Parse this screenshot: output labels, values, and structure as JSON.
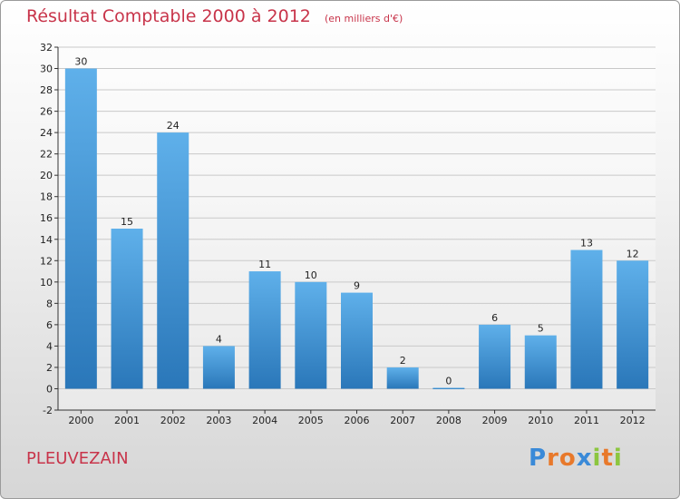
{
  "chart_data": {
    "type": "bar",
    "title": "Résultat Comptable 2000 à 2012",
    "unit_label": "(en milliers d'€)",
    "categories": [
      "2000",
      "2001",
      "2002",
      "2003",
      "2004",
      "2005",
      "2006",
      "2007",
      "2008",
      "2009",
      "2010",
      "2011",
      "2012"
    ],
    "values": [
      30,
      15,
      24,
      4,
      11,
      10,
      9,
      2,
      0,
      6,
      5,
      13,
      12
    ],
    "ylim": [
      -2,
      32
    ],
    "yticks": [
      -2,
      0,
      2,
      4,
      6,
      8,
      10,
      12,
      14,
      16,
      18,
      20,
      22,
      24,
      26,
      28,
      30,
      32
    ],
    "grid": true,
    "xlabel": "",
    "ylabel": "",
    "bar_color_top": "#5fb0ea",
    "bar_color_bottom": "#2a77b9"
  },
  "footer": {
    "commune": "PLEUVEZAIN",
    "logo": "Proxiti"
  },
  "colors": {
    "title": "#c8344a",
    "grid": "#c9c9c9"
  }
}
